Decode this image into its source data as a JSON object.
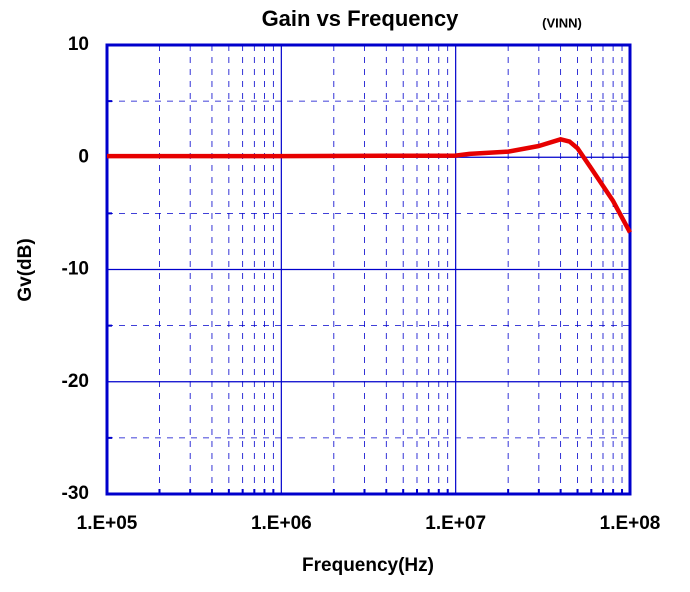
{
  "chart_data": {
    "type": "line",
    "title": "Gain vs Frequency",
    "annotation": "(VINN)",
    "xlabel": "Frequency(Hz)",
    "ylabel": "Gv(dB)",
    "xscale": "log",
    "x": [
      100000,
      1000000,
      10000000,
      12000000,
      20000000,
      30000000,
      40000000,
      45000000,
      50000000,
      60000000,
      80000000,
      100000000
    ],
    "series": [
      {
        "name": "VINN",
        "color": "#e60000",
        "values": [
          0.1,
          0.1,
          0.15,
          0.3,
          0.5,
          1.0,
          1.6,
          1.4,
          0.8,
          -1.0,
          -3.9,
          -6.7
        ]
      }
    ],
    "xlim": [
      100000,
      100000000
    ],
    "xticks": [
      {
        "value": 100000,
        "label": "1.E+05"
      },
      {
        "value": 1000000,
        "label": "1.E+06"
      },
      {
        "value": 10000000,
        "label": "1.E+07"
      },
      {
        "value": 100000000,
        "label": "1.E+08"
      }
    ],
    "x_minor_ticks": [
      200000,
      300000,
      400000,
      500000,
      600000,
      700000,
      800000,
      900000,
      2000000,
      3000000,
      4000000,
      5000000,
      6000000,
      7000000,
      8000000,
      9000000,
      20000000,
      30000000,
      40000000,
      50000000,
      60000000,
      70000000,
      80000000,
      90000000
    ],
    "ylim": [
      -30,
      10
    ],
    "yticks": [
      10,
      0,
      -10,
      -20,
      -30
    ],
    "y_minor_ticks": [
      5,
      -5,
      -15,
      -25
    ],
    "grid": true,
    "axis_color": "#0000cc"
  }
}
